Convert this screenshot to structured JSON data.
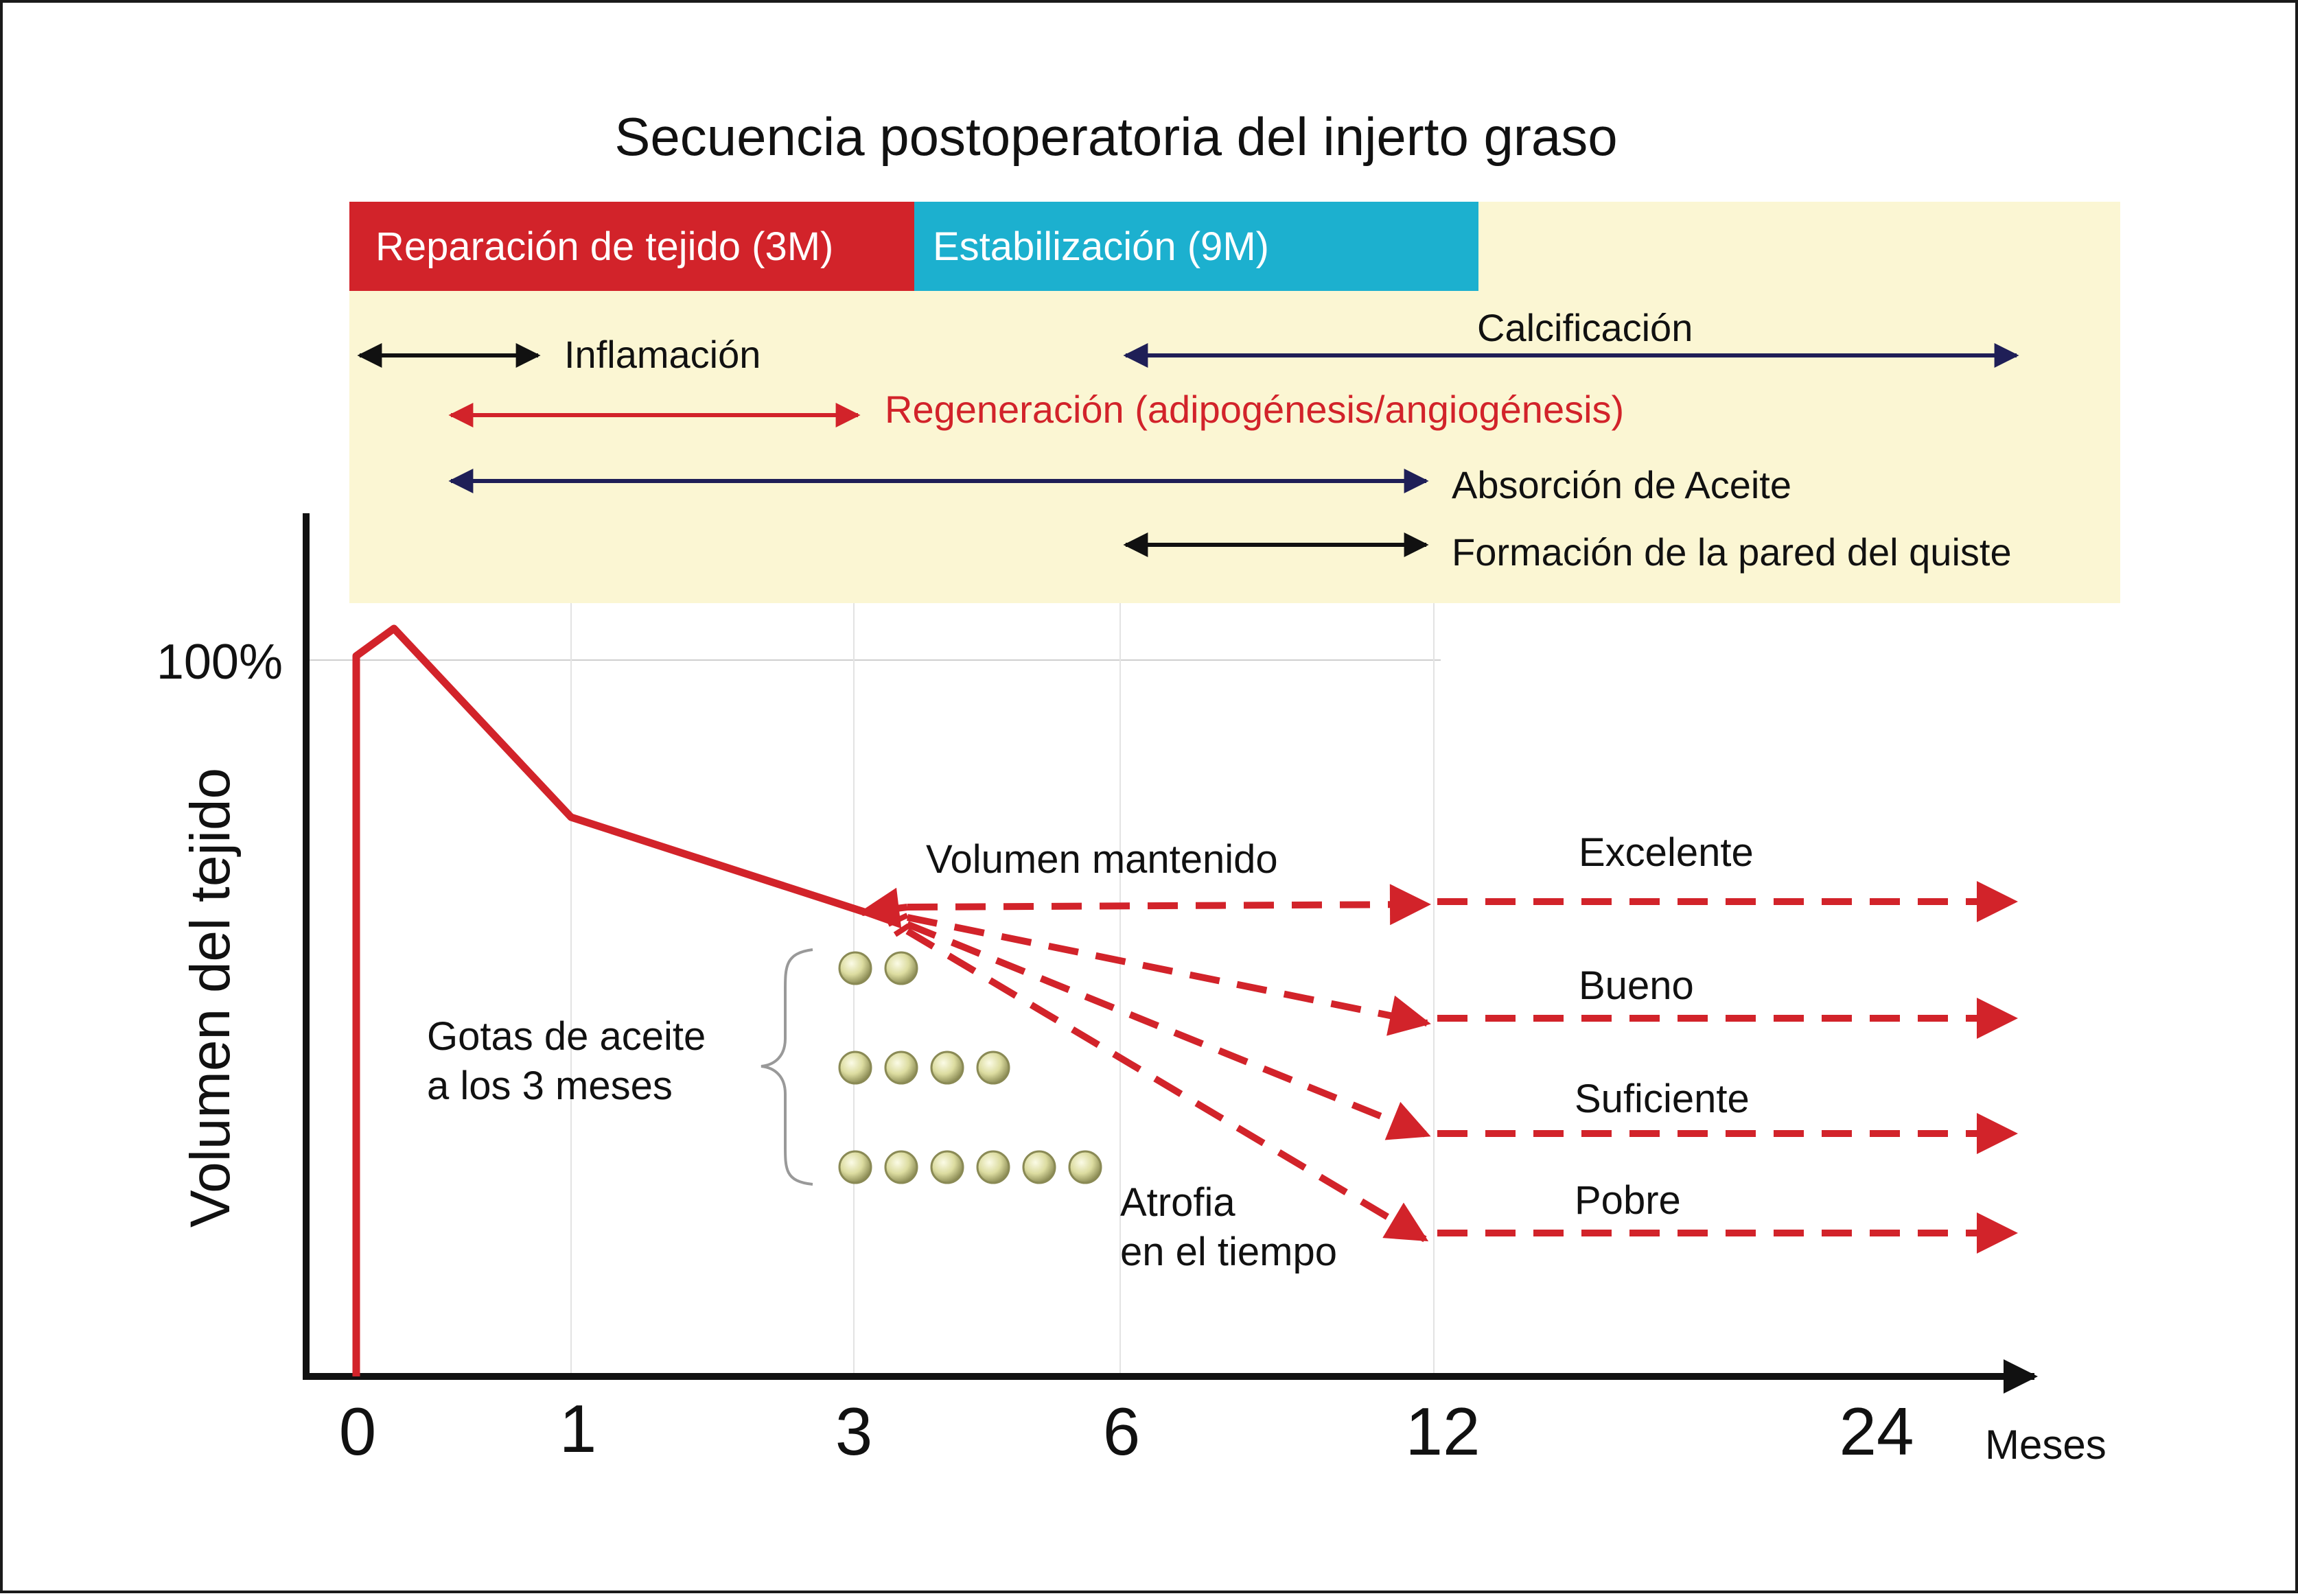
{
  "title": "Secuencia postoperatoria del injerto graso",
  "phases": [
    {
      "label": "Reparación de tejido (3M)",
      "color": "#d2232a"
    },
    {
      "label": "Estabilización (9M)",
      "color": "#1cb0cf"
    }
  ],
  "processes": [
    {
      "label": "Inflamación",
      "color": "#111111"
    },
    {
      "label": "Calcificación",
      "color": "#1f1f57"
    },
    {
      "label": "Regeneración (adipogénesis/angiogénesis)",
      "color": "#d2232a"
    },
    {
      "label": "Absorción de Aceite",
      "color": "#1f1f57"
    },
    {
      "label": "Formación de la pared del quiste",
      "color": "#111111"
    }
  ],
  "axis": {
    "y_label": "Volumen del tejido",
    "y_tick": "100%",
    "x_ticks": [
      "0",
      "1",
      "3",
      "6",
      "12",
      "24"
    ],
    "x_unit": "Meses"
  },
  "annotations": {
    "maintained": "Volumen mantenido",
    "droplets_line1": "Gotas de aceite",
    "droplets_line2": "a los 3 meses",
    "atrophy_line1": "Atrofia",
    "atrophy_line2": "en el tiempo"
  },
  "outcomes": [
    "Excelente",
    "Bueno",
    "Suficiente",
    "Pobre"
  ],
  "droplet_rows": [
    2,
    4,
    6
  ],
  "colors": {
    "red": "#d2232a",
    "navy": "#1f1f57",
    "panel": "#fbf6d3",
    "droplet": "#dcdca0"
  }
}
